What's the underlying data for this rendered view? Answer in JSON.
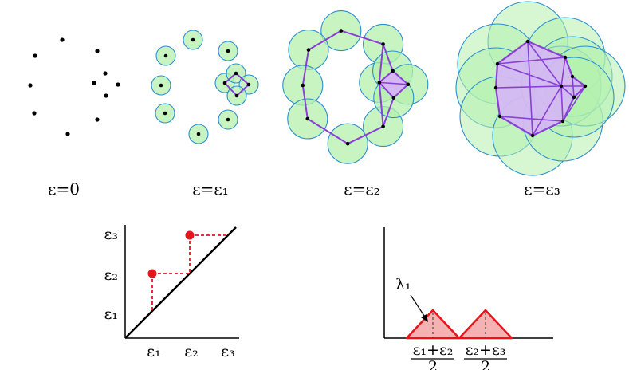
{
  "panels": [
    {
      "label": "ε=0",
      "epsilon": "0"
    },
    {
      "label": "ε=ε₁",
      "epsilon": "ε₁"
    },
    {
      "label": "ε=ε₂",
      "epsilon": "ε₂"
    },
    {
      "label": "ε=ε₃",
      "epsilon": "ε₃"
    }
  ],
  "persistence_diagram": {
    "y_ticks": [
      "ε₃",
      "ε₂",
      "ε₁"
    ],
    "x_ticks": [
      "ε₁",
      "ε₂",
      "ε₃"
    ],
    "points": [
      {
        "birth": "ε₁",
        "death": "ε₂"
      },
      {
        "birth": "ε₂",
        "death": "ε₃"
      }
    ]
  },
  "persistence_landscape": {
    "curve_label": "λ₁",
    "x_ticks": [
      {
        "numerator": "ε₁+ε₂",
        "denominator": "2"
      },
      {
        "numerator": "ε₂+ε₃",
        "denominator": "2"
      }
    ]
  },
  "colors": {
    "points": "#000000",
    "ball_fill": "#b5f0ad",
    "ball_stroke": "#2b8fd0",
    "complex_edge": "#8a3fd6",
    "complex_fill": "#d4b8f2",
    "persistence_point": "#e8141b",
    "landscape_fill": "#f4b2b2",
    "landscape_stroke": "#e8141b"
  }
}
